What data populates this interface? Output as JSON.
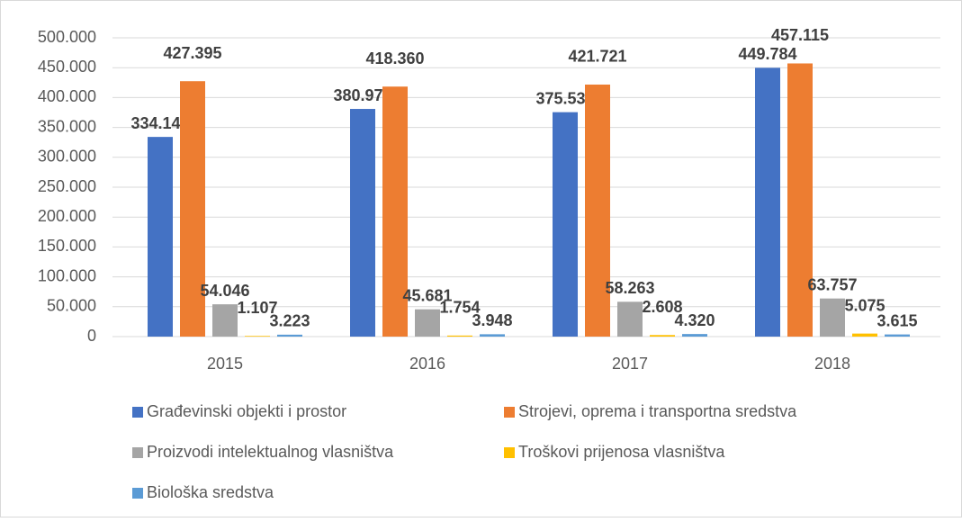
{
  "chart_data": {
    "type": "bar",
    "categories": [
      "2015",
      "2016",
      "2017",
      "2018"
    ],
    "series": [
      {
        "name": "Građevinski objekti i prostor",
        "color": "#4472c4",
        "values": [
          334142,
          380979,
          375536,
          449784
        ],
        "value_labels": [
          "334.142",
          "380.979",
          "375.536",
          "449.784"
        ]
      },
      {
        "name": "Strojevi, oprema i transportna sredstva",
        "color": "#ed7d31",
        "values": [
          427395,
          418360,
          421721,
          457115
        ],
        "value_labels": [
          "427.395",
          "418.360",
          "421.721",
          "457.115"
        ]
      },
      {
        "name": "Proizvodi intelektualnog vlasništva",
        "color": "#a5a5a5",
        "values": [
          54046,
          45681,
          58263,
          63757
        ],
        "value_labels": [
          "54.046",
          "45.681",
          "58.263",
          "63.757"
        ]
      },
      {
        "name": "Troškovi prijenosa vlasništva",
        "color": "#ffc000",
        "values": [
          1107,
          1754,
          2608,
          5075
        ],
        "value_labels": [
          "1.107",
          "1.754",
          "2.608",
          "5.075"
        ]
      },
      {
        "name": "Biološka sredstva",
        "color": "#5b9bd5",
        "values": [
          3223,
          3948,
          4320,
          3615
        ],
        "value_labels": [
          "3.223",
          "3.948",
          "4.320",
          "3.615"
        ]
      }
    ],
    "ylim": [
      0,
      500000
    ],
    "yticks": [
      0,
      {
        "value": 50000,
        "label": "50.000"
      },
      {
        "value": 100000,
        "label": "100.000"
      },
      {
        "value": 150000,
        "label": "150.000"
      },
      {
        "value": 200000,
        "label": "200.000"
      },
      {
        "value": 250000,
        "label": "250.000"
      },
      {
        "value": 300000,
        "label": "300.000"
      },
      {
        "value": 350000,
        "label": "350.000"
      },
      {
        "value": 400000,
        "label": "400.000"
      },
      {
        "value": 450000,
        "label": "450.000"
      },
      {
        "value": 500000,
        "label": "500.000"
      }
    ],
    "grid": true
  }
}
